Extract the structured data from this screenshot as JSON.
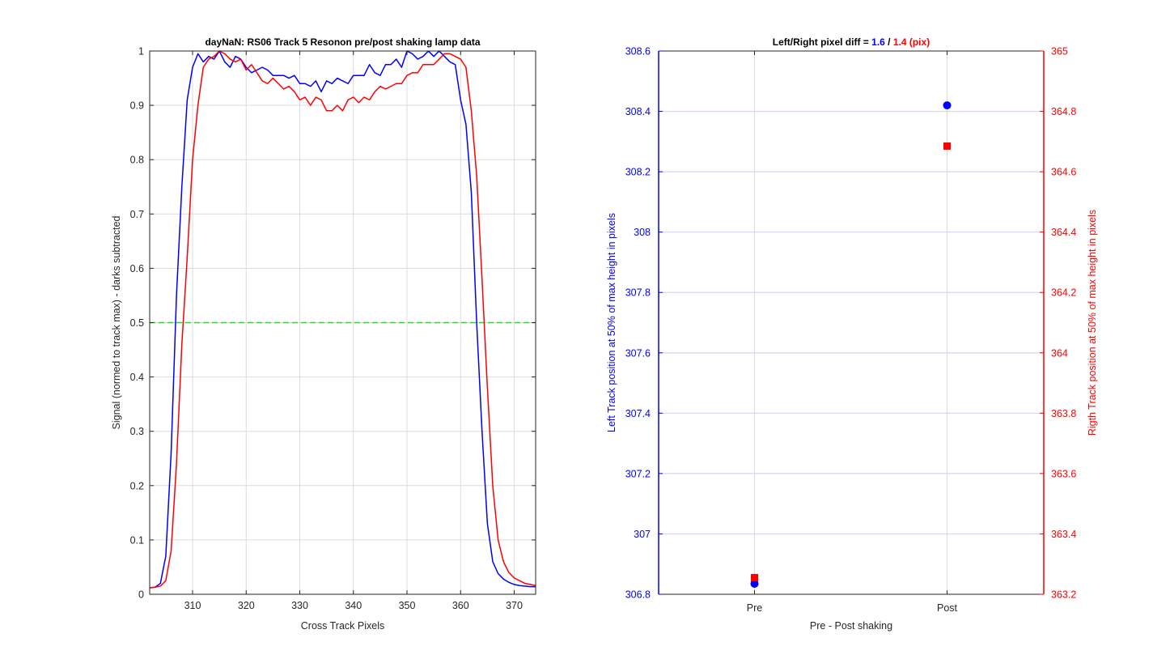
{
  "chart_data": [
    {
      "type": "line",
      "title": "dayNaN: RS06  Track 5 Resonon pre/post shaking lamp data",
      "xlabel": "Cross Track Pixels",
      "ylabel": "Signal (normed to track max) - darks subtracted",
      "xlim": [
        302,
        374
      ],
      "ylim": [
        0,
        1
      ],
      "grid": true,
      "xticks": [
        310,
        320,
        330,
        340,
        350,
        360,
        370
      ],
      "yticks": [
        0,
        0.1,
        0.2,
        0.3,
        0.4,
        0.5,
        0.6,
        0.7,
        0.8,
        0.9,
        1
      ],
      "ytick_labels": [
        "0",
        "0.1",
        "0.2",
        "0.3",
        "0.4",
        "0.5",
        "0.6",
        "0.7",
        "0.8",
        "0.9",
        "1"
      ],
      "colors": {
        "series1": "#0000ff",
        "series2": "#ff0000",
        "threshold": "#22dd22"
      },
      "x": [
        302,
        303,
        304,
        305,
        306,
        307,
        308,
        309,
        310,
        311,
        312,
        313,
        314,
        315,
        316,
        317,
        318,
        319,
        320,
        321,
        322,
        323,
        324,
        325,
        326,
        327,
        328,
        329,
        330,
        331,
        332,
        333,
        334,
        335,
        336,
        337,
        338,
        339,
        340,
        341,
        342,
        343,
        344,
        345,
        346,
        347,
        348,
        349,
        350,
        351,
        352,
        353,
        354,
        355,
        356,
        357,
        358,
        359,
        360,
        361,
        362,
        363,
        364,
        365,
        366,
        367,
        368,
        369,
        370,
        371,
        372,
        373,
        374
      ],
      "series": [
        {
          "color": "#0000ff",
          "values": [
            0.012,
            0.013,
            0.02,
            0.07,
            0.26,
            0.55,
            0.75,
            0.91,
            0.97,
            0.995,
            0.98,
            0.99,
            0.985,
            1.0,
            0.98,
            0.97,
            0.99,
            0.985,
            0.97,
            0.96,
            0.965,
            0.97,
            0.965,
            0.955,
            0.955,
            0.955,
            0.95,
            0.955,
            0.94,
            0.94,
            0.935,
            0.945,
            0.925,
            0.945,
            0.94,
            0.95,
            0.945,
            0.94,
            0.955,
            0.955,
            0.955,
            0.975,
            0.96,
            0.955,
            0.975,
            0.975,
            0.985,
            0.97,
            1.0,
            0.995,
            0.985,
            0.99,
            1.0,
            0.99,
            1.0,
            0.99,
            0.98,
            0.975,
            0.91,
            0.865,
            0.74,
            0.5,
            0.3,
            0.13,
            0.06,
            0.038,
            0.028,
            0.022,
            0.018,
            0.016,
            0.015,
            0.014,
            0.014
          ]
        },
        {
          "color": "#ff0000",
          "values": [
            0.012,
            0.013,
            0.015,
            0.025,
            0.08,
            0.24,
            0.46,
            0.62,
            0.8,
            0.9,
            0.97,
            0.985,
            0.99,
            1.0,
            0.995,
            0.985,
            0.98,
            0.985,
            0.965,
            0.975,
            0.96,
            0.945,
            0.94,
            0.95,
            0.94,
            0.93,
            0.935,
            0.925,
            0.91,
            0.915,
            0.9,
            0.915,
            0.91,
            0.89,
            0.89,
            0.9,
            0.89,
            0.91,
            0.915,
            0.905,
            0.915,
            0.91,
            0.925,
            0.935,
            0.93,
            0.935,
            0.94,
            0.94,
            0.955,
            0.96,
            0.96,
            0.975,
            0.975,
            0.975,
            0.985,
            0.995,
            0.995,
            0.99,
            0.985,
            0.97,
            0.89,
            0.77,
            0.58,
            0.38,
            0.2,
            0.1,
            0.06,
            0.04,
            0.03,
            0.025,
            0.02,
            0.018,
            0.016
          ]
        }
      ],
      "threshold_line": 0.5
    },
    {
      "type": "scatter",
      "title_parts": [
        {
          "text": "Left/Right pixel diff = ",
          "color": "#000000"
        },
        {
          "text": "1.6",
          "color": "#0000ff"
        },
        {
          "text": " / ",
          "color": "#000000"
        },
        {
          "text": "1.4 (pix)",
          "color": "#ff0000"
        }
      ],
      "xlabel": "Pre - Post shaking",
      "ylabel_left": "Left Track position at 50% of max height in pixels",
      "ylabel_right": "Rigth Track position at 50% of max height in pixels",
      "categories": [
        "Pre",
        "Post"
      ],
      "ylim_left": [
        306.8,
        308.6
      ],
      "ylim_right": [
        363.2,
        365
      ],
      "yticks_left": [
        306.8,
        307,
        307.2,
        307.4,
        307.6,
        307.8,
        308,
        308.2,
        308.4,
        308.6
      ],
      "ytick_labels_left": [
        "306.8",
        "307",
        "307.2",
        "307.4",
        "307.6",
        "307.8",
        "308",
        "308.2",
        "308.4",
        "308.6"
      ],
      "yticks_right": [
        363.2,
        363.4,
        363.6,
        363.8,
        364,
        364.2,
        364.4,
        364.6,
        364.8,
        365
      ],
      "ytick_labels_right": [
        "363.2",
        "363.4",
        "363.6",
        "363.8",
        "364",
        "364.2",
        "364.4",
        "364.6",
        "364.8",
        "365"
      ],
      "grid": true,
      "colors": {
        "left": "#0000ff",
        "right": "#ff0000"
      },
      "series": [
        {
          "axis": "left",
          "marker": "circle",
          "color": "#0000ff",
          "values": [
            306.835,
            308.42
          ]
        },
        {
          "axis": "right",
          "marker": "square",
          "color": "#ff0000",
          "values": [
            363.255,
            364.685
          ]
        }
      ]
    }
  ]
}
